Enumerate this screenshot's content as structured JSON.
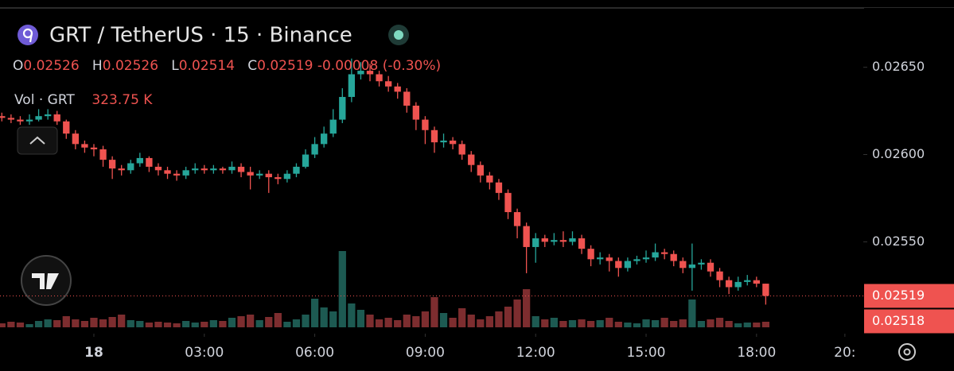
{
  "chart_data": {
    "type": "candlestick",
    "title": "GRT / TetherUS · 15 · Binance",
    "legend": {
      "o_label": "O",
      "open": 0.02526,
      "h_label": "H",
      "high": 0.02526,
      "l_label": "L",
      "low": 0.02514,
      "c_label": "C",
      "close": 0.02519,
      "change": -8e-05,
      "change_pct": "(-0.30%)"
    },
    "volume_legend": {
      "label": "Vol · GRT",
      "value": "323.75 K"
    },
    "up_color": "#26a69a",
    "down_color": "#ef5350",
    "volume_up_color": "#1d5a52",
    "volume_down_color": "#7d2d2f",
    "grid": false,
    "xlim": [
      -2.55,
      20.9
    ],
    "xticks": [
      {
        "value": 0,
        "label": "18"
      },
      {
        "value": 3,
        "label": "03:00"
      },
      {
        "value": 6,
        "label": "06:00"
      },
      {
        "value": 9,
        "label": "09:00"
      },
      {
        "value": 12,
        "label": "12:00"
      },
      {
        "value": 15,
        "label": "15:00"
      },
      {
        "value": 18,
        "label": "18:00"
      },
      {
        "value": 20.4,
        "label": "20:"
      }
    ],
    "ylim": [
      0.02501,
      0.02684
    ],
    "yticks": [
      {
        "value": 0.0265,
        "label": "0.02650"
      },
      {
        "value": 0.026,
        "label": "0.02600"
      },
      {
        "value": 0.0255,
        "label": "0.02550"
      }
    ],
    "price_tags": [
      0.02519,
      0.02518
    ],
    "x": [
      -2.5,
      -2.25,
      -2,
      -1.75,
      -1.5,
      -1.25,
      -1,
      -0.75,
      -0.5,
      -0.25,
      0,
      0.25,
      0.5,
      0.75,
      1,
      1.25,
      1.5,
      1.75,
      2,
      2.25,
      2.5,
      2.75,
      3,
      3.25,
      3.5,
      3.75,
      4,
      4.25,
      4.5,
      4.75,
      5,
      5.25,
      5.5,
      5.75,
      6,
      6.25,
      6.5,
      6.75,
      7,
      7.25,
      7.5,
      7.75,
      8,
      8.25,
      8.5,
      8.75,
      9,
      9.25,
      9.5,
      9.75,
      10,
      10.25,
      10.5,
      10.75,
      11,
      11.25,
      11.5,
      11.75,
      12,
      12.25,
      12.5,
      12.75,
      13,
      13.25,
      13.5,
      13.75,
      14,
      14.25,
      14.5,
      14.75,
      15,
      15.25,
      15.5,
      15.75,
      16,
      16.25,
      16.5,
      16.75,
      17,
      17.25,
      17.5,
      17.75,
      18,
      18.25
    ],
    "candles": [
      [
        0.02622,
        0.02624,
        0.02619,
        0.02621
      ],
      [
        0.02621,
        0.02623,
        0.02618,
        0.0262
      ],
      [
        0.0262,
        0.02622,
        0.02617,
        0.02619
      ],
      [
        0.02619,
        0.02623,
        0.02617,
        0.0262
      ],
      [
        0.0262,
        0.02626,
        0.02619,
        0.02622
      ],
      [
        0.02622,
        0.02626,
        0.0262,
        0.02623
      ],
      [
        0.02623,
        0.02625,
        0.02617,
        0.02619
      ],
      [
        0.02619,
        0.0262,
        0.02609,
        0.02612
      ],
      [
        0.02612,
        0.02614,
        0.02603,
        0.02606
      ],
      [
        0.02606,
        0.02608,
        0.02601,
        0.02604
      ],
      [
        0.02604,
        0.02606,
        0.02599,
        0.02603
      ],
      [
        0.02603,
        0.02605,
        0.02593,
        0.02597
      ],
      [
        0.02597,
        0.02599,
        0.02586,
        0.02592
      ],
      [
        0.02592,
        0.02594,
        0.02588,
        0.02591
      ],
      [
        0.02591,
        0.02597,
        0.02589,
        0.02595
      ],
      [
        0.02595,
        0.02601,
        0.02593,
        0.02598
      ],
      [
        0.02598,
        0.02599,
        0.0259,
        0.02593
      ],
      [
        0.02593,
        0.02595,
        0.02588,
        0.02591
      ],
      [
        0.02591,
        0.02593,
        0.02586,
        0.02589
      ],
      [
        0.02589,
        0.02591,
        0.02585,
        0.02588
      ],
      [
        0.02588,
        0.02593,
        0.02586,
        0.02591
      ],
      [
        0.02591,
        0.02595,
        0.02589,
        0.02592
      ],
      [
        0.02592,
        0.02594,
        0.02589,
        0.02591
      ],
      [
        0.02591,
        0.02594,
        0.02589,
        0.02592
      ],
      [
        0.02592,
        0.02593,
        0.02589,
        0.02591
      ],
      [
        0.02591,
        0.02596,
        0.02589,
        0.02593
      ],
      [
        0.02593,
        0.02595,
        0.02587,
        0.0259
      ],
      [
        0.0259,
        0.02593,
        0.0258,
        0.02588
      ],
      [
        0.02588,
        0.02591,
        0.02586,
        0.02589
      ],
      [
        0.02589,
        0.02591,
        0.02578,
        0.02587
      ],
      [
        0.02587,
        0.02589,
        0.02583,
        0.02586
      ],
      [
        0.02586,
        0.02591,
        0.02584,
        0.02589
      ],
      [
        0.02589,
        0.02595,
        0.02587,
        0.02593
      ],
      [
        0.02593,
        0.02603,
        0.02592,
        0.026
      ],
      [
        0.026,
        0.0261,
        0.02598,
        0.02606
      ],
      [
        0.02606,
        0.02616,
        0.02604,
        0.02612
      ],
      [
        0.02612,
        0.02626,
        0.0261,
        0.0262
      ],
      [
        0.0262,
        0.02638,
        0.02618,
        0.02633
      ],
      [
        0.02633,
        0.02655,
        0.0263,
        0.02646
      ],
      [
        0.02646,
        0.02653,
        0.02643,
        0.02648
      ],
      [
        0.02648,
        0.02652,
        0.02642,
        0.02646
      ],
      [
        0.02646,
        0.02648,
        0.02639,
        0.02642
      ],
      [
        0.02642,
        0.02645,
        0.02636,
        0.02639
      ],
      [
        0.02639,
        0.02641,
        0.02632,
        0.02636
      ],
      [
        0.02636,
        0.02638,
        0.02624,
        0.02628
      ],
      [
        0.02628,
        0.0263,
        0.02614,
        0.0262
      ],
      [
        0.0262,
        0.02622,
        0.02606,
        0.02614
      ],
      [
        0.02614,
        0.02616,
        0.02601,
        0.02607
      ],
      [
        0.02607,
        0.02612,
        0.02604,
        0.02608
      ],
      [
        0.02608,
        0.0261,
        0.02603,
        0.02606
      ],
      [
        0.02606,
        0.02608,
        0.02597,
        0.026
      ],
      [
        0.026,
        0.02602,
        0.0259,
        0.02594
      ],
      [
        0.02594,
        0.02596,
        0.02584,
        0.02588
      ],
      [
        0.02588,
        0.0259,
        0.0258,
        0.02584
      ],
      [
        0.02584,
        0.02586,
        0.02574,
        0.02578
      ],
      [
        0.02578,
        0.0258,
        0.02563,
        0.02567
      ],
      [
        0.02567,
        0.02569,
        0.02552,
        0.02559
      ],
      [
        0.02559,
        0.02561,
        0.02532,
        0.02547
      ],
      [
        0.02547,
        0.02555,
        0.02538,
        0.02552
      ],
      [
        0.02552,
        0.02554,
        0.02547,
        0.0255
      ],
      [
        0.0255,
        0.02555,
        0.02548,
        0.02551
      ],
      [
        0.02551,
        0.02556,
        0.02547,
        0.0255
      ],
      [
        0.0255,
        0.02556,
        0.02548,
        0.02552
      ],
      [
        0.02552,
        0.02554,
        0.02543,
        0.02546
      ],
      [
        0.02546,
        0.02548,
        0.02536,
        0.0254
      ],
      [
        0.0254,
        0.02544,
        0.02537,
        0.02541
      ],
      [
        0.02541,
        0.02543,
        0.02533,
        0.02539
      ],
      [
        0.02539,
        0.02541,
        0.0253,
        0.02535
      ],
      [
        0.02535,
        0.02541,
        0.02533,
        0.02539
      ],
      [
        0.02539,
        0.02542,
        0.02537,
        0.0254
      ],
      [
        0.0254,
        0.02545,
        0.02538,
        0.02541
      ],
      [
        0.02541,
        0.02549,
        0.02539,
        0.02544
      ],
      [
        0.02544,
        0.02546,
        0.0254,
        0.02543
      ],
      [
        0.02543,
        0.02545,
        0.02536,
        0.02539
      ],
      [
        0.02539,
        0.02541,
        0.02532,
        0.02535
      ],
      [
        0.02535,
        0.02549,
        0.02522,
        0.02537
      ],
      [
        0.02537,
        0.0254,
        0.02534,
        0.02538
      ],
      [
        0.02538,
        0.0254,
        0.0253,
        0.02533
      ],
      [
        0.02533,
        0.02535,
        0.02524,
        0.02528
      ],
      [
        0.02528,
        0.0253,
        0.0252,
        0.02524
      ],
      [
        0.02524,
        0.0253,
        0.02522,
        0.02527
      ],
      [
        0.02527,
        0.02531,
        0.02525,
        0.02528
      ],
      [
        0.02528,
        0.0253,
        0.02524,
        0.02526
      ],
      [
        0.02526,
        0.02526,
        0.02514,
        0.02519
      ]
    ],
    "volume": [
      231250,
      323750,
      277500,
      185000,
      370000,
      462500,
      416250,
      647500,
      462500,
      370000,
      555000,
      462500,
      601250,
      740000,
      416250,
      370000,
      277500,
      323750,
      277500,
      231250,
      370000,
      277500,
      323750,
      416250,
      370000,
      555000,
      647500,
      740000,
      416250,
      601250,
      832500,
      323750,
      462500,
      740000,
      1665000,
      1156250,
      925000,
      4440000,
      1387500,
      1017500,
      740000,
      462500,
      555000,
      416250,
      740000,
      647500,
      925000,
      1757500,
      832500,
      555000,
      1110000,
      740000,
      462500,
      647500,
      925000,
      1202500,
      1618750,
      2220000,
      647500,
      462500,
      555000,
      370000,
      416250,
      462500,
      370000,
      416250,
      555000,
      323750,
      277500,
      231250,
      462500,
      416250,
      555000,
      370000,
      462500,
      1618750,
      370000,
      462500,
      555000,
      370000,
      231250,
      277500,
      277500,
      323750
    ]
  }
}
